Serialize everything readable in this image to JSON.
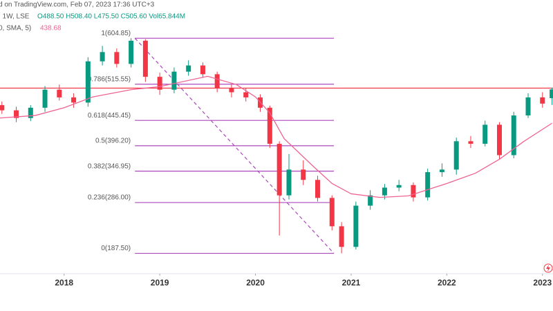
{
  "header": {
    "source": "d on TradingView.com, Feb 07, 2023 17:36 UTC+3",
    "symbol": ", 1W, LSE",
    "ohlc": "O488.50 H508.40 L475.50 C505.60 Vol65.844M",
    "indicator": "0, SMA, 5)",
    "indicator_value": "438.68"
  },
  "chart_data": {
    "type": "candlestick",
    "x": [
      2017.35,
      2017.5,
      2017.65,
      2017.8,
      2017.95,
      2018.1,
      2018.25,
      2018.4,
      2018.55,
      2018.7,
      2018.85,
      2019.0,
      2019.15,
      2019.3,
      2019.45,
      2019.6,
      2019.75,
      2019.9,
      2020.05,
      2020.15,
      2020.25,
      2020.35,
      2020.5,
      2020.65,
      2020.8,
      2020.9,
      2021.05,
      2021.2,
      2021.35,
      2021.5,
      2021.65,
      2021.8,
      2021.95,
      2022.1,
      2022.25,
      2022.4,
      2022.55,
      2022.7,
      2022.85,
      2023.0,
      2023.1
    ],
    "open": [
      475,
      465,
      450,
      470,
      505,
      490,
      480,
      560,
      578,
      555,
      600,
      530,
      505,
      540,
      552,
      535,
      508,
      500,
      490,
      470,
      400,
      300,
      350,
      330,
      295,
      240,
      200,
      280,
      300,
      315,
      320,
      296,
      345,
      350,
      405,
      400,
      437,
      378,
      455,
      490,
      488.5
    ],
    "high": [
      482,
      472,
      475,
      512,
      515,
      498,
      568,
      590,
      585,
      604.85,
      603,
      538,
      548,
      562,
      558,
      540,
      515,
      508,
      496,
      474,
      405,
      380,
      368,
      338,
      300,
      248,
      288,
      310,
      322,
      330,
      325,
      352,
      362,
      412,
      415,
      445,
      442,
      462,
      498,
      500,
      508.4
    ],
    "low": [
      458,
      442,
      444,
      462,
      484,
      470,
      472,
      552,
      548,
      548,
      520,
      495,
      498,
      532,
      528,
      500,
      490,
      482,
      462,
      392,
      222,
      292,
      320,
      288,
      232,
      187.5,
      195,
      272,
      292,
      308,
      288,
      290,
      336,
      340,
      392,
      395,
      370,
      372,
      450,
      470,
      475.5
    ],
    "close": [
      465,
      450,
      470,
      505,
      490,
      480,
      560,
      578,
      555,
      600,
      530,
      505,
      540,
      552,
      535,
      508,
      500,
      490,
      470,
      400,
      300,
      350,
      330,
      295,
      240,
      200,
      280,
      300,
      315,
      320,
      296,
      345,
      350,
      405,
      400,
      437,
      378,
      455,
      490,
      478,
      505.6
    ],
    "up_color": "#089981",
    "down_color": "#f23645",
    "sma": {
      "color": "#f06292",
      "x": [
        2017.33,
        2017.7,
        2018.0,
        2018.3,
        2018.7,
        2019.0,
        2019.5,
        2019.8,
        2020.0,
        2020.15,
        2020.3,
        2020.6,
        2020.8,
        2021.0,
        2021.3,
        2021.6,
        2022.0,
        2022.3,
        2022.55,
        2022.8,
        2023.1
      ],
      "values": [
        450,
        455,
        470,
        491,
        505,
        511,
        531,
        515,
        491,
        460,
        410,
        357,
        323,
        303,
        296,
        299,
        323,
        343,
        370,
        404,
        440
      ]
    },
    "hline": {
      "value": 508,
      "color": "#f23645"
    },
    "fib": {
      "color": "#ab47bc",
      "x": [
        2018.74,
        2020.82
      ],
      "trend": [
        604.85,
        187.5
      ],
      "levels": [
        {
          "value": 604.85,
          "label": "1(604.85)"
        },
        {
          "value": 515.55,
          "label": "0.786(515.55)"
        },
        {
          "value": 445.45,
          "label": "0.618(445.45)"
        },
        {
          "value": 396.2,
          "label": "0.5(396.20)"
        },
        {
          "value": 346.95,
          "label": "0.382(346.95)"
        },
        {
          "value": 286.0,
          "label": "0.236(286.00)"
        },
        {
          "value": 187.5,
          "label": "0(187.50)"
        }
      ]
    },
    "xlim": [
      2017.33,
      2023.11
    ],
    "ylim": [
      148,
      679
    ],
    "xticks": [
      2018,
      2019,
      2020,
      2021,
      2022,
      2023
    ]
  }
}
